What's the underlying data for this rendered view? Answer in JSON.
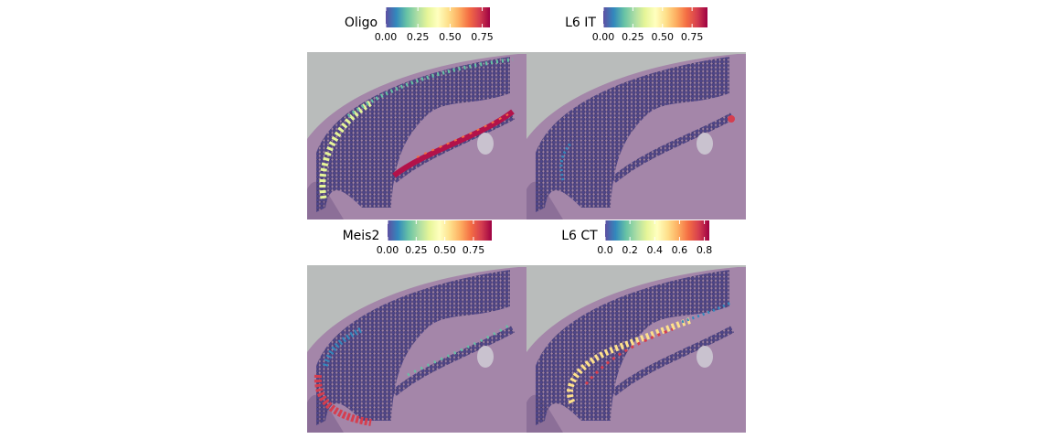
{
  "chart_data": [
    {
      "type": "spatial",
      "title": "Oligo",
      "clim": [
        0,
        0.81
      ],
      "cticks": [
        {
          "value": 0,
          "label": "0.00"
        },
        0.25,
        {
          "value": 0.5,
          "label": "0.50"
        },
        0.75
      ],
      "colormap": [
        "#5e4fa2",
        "#3288bd",
        "#66c2a5",
        "#abdda4",
        "#e6f598",
        "#ffffbf",
        "#fee08b",
        "#fdae61",
        "#f46d43",
        "#d53e4f",
        "#9e0142"
      ]
    },
    {
      "type": "spatial",
      "title": "L6 IT",
      "clim": [
        0,
        0.88
      ],
      "cticks": [
        {
          "value": 0,
          "label": "0.00"
        },
        0.25,
        {
          "value": 0.5,
          "label": "0.50"
        },
        0.75
      ],
      "colormap": [
        "#5e4fa2",
        "#3288bd",
        "#66c2a5",
        "#abdda4",
        "#e6f598",
        "#ffffbf",
        "#fee08b",
        "#fdae61",
        "#f46d43",
        "#d53e4f",
        "#9e0142"
      ]
    },
    {
      "type": "spatial",
      "title": "Meis2",
      "clim": [
        0,
        0.91
      ],
      "cticks": [
        {
          "value": 0,
          "label": "0.00"
        },
        0.25,
        {
          "value": 0.5,
          "label": "0.50"
        },
        0.75
      ],
      "colormap": [
        "#5e4fa2",
        "#3288bd",
        "#66c2a5",
        "#abdda4",
        "#e6f598",
        "#ffffbf",
        "#fee08b",
        "#fdae61",
        "#f46d43",
        "#d53e4f",
        "#9e0142"
      ]
    },
    {
      "type": "spatial",
      "title": "L6 CT",
      "clim": [
        0,
        0.84
      ],
      "cticks": [
        {
          "value": 0,
          "label": "0.0"
        },
        0.2,
        0.4,
        0.6,
        0.8
      ],
      "colormap": [
        "#5e4fa2",
        "#3288bd",
        "#66c2a5",
        "#abdda4",
        "#e6f598",
        "#ffffbf",
        "#fee08b",
        "#fdae61",
        "#f46d43",
        "#d53e4f",
        "#9e0142"
      ]
    }
  ]
}
